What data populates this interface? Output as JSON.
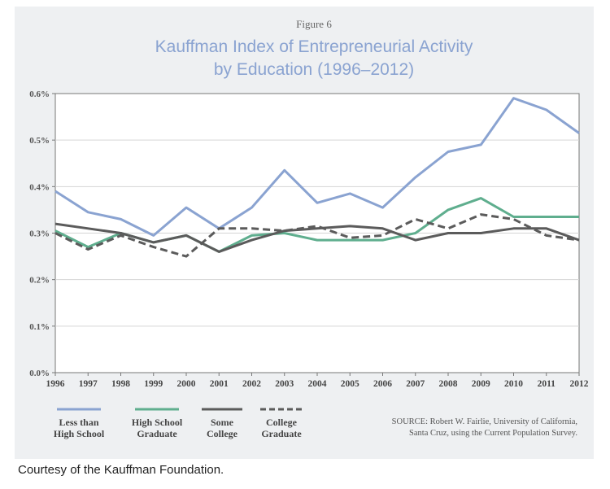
{
  "caption": "Courtesy of the Kauffman Foundation.",
  "chart_data": {
    "type": "line",
    "figure_label": "Figure 6",
    "title_line1": "Kauffman Index of Entrepreneurial Activity",
    "title_line2": "by Education (1996–2012)",
    "x": [
      1996,
      1997,
      1998,
      1999,
      2000,
      2001,
      2002,
      2003,
      2004,
      2005,
      2006,
      2007,
      2008,
      2009,
      2010,
      2011,
      2012
    ],
    "yticks": [
      0.0,
      0.1,
      0.2,
      0.3,
      0.4,
      0.5,
      0.6
    ],
    "ytick_labels": [
      "0.0%",
      "0.1%",
      "0.2%",
      "0.3%",
      "0.4%",
      "0.5%",
      "0.6%"
    ],
    "ylim": [
      0,
      0.6
    ],
    "series": [
      {
        "name_line1": "Less than",
        "name_line2": "High School",
        "color": "#8aa3d1",
        "dash": "solid",
        "values": [
          0.39,
          0.345,
          0.33,
          0.295,
          0.355,
          0.31,
          0.355,
          0.435,
          0.365,
          0.385,
          0.355,
          0.42,
          0.475,
          0.49,
          0.59,
          0.565,
          0.515
        ]
      },
      {
        "name_line1": "High School",
        "name_line2": "Graduate",
        "color": "#5fae8e",
        "dash": "solid",
        "values": [
          0.305,
          0.27,
          0.3,
          0.28,
          0.295,
          0.26,
          0.295,
          0.3,
          0.285,
          0.285,
          0.285,
          0.3,
          0.35,
          0.375,
          0.335,
          0.335,
          0.335
        ]
      },
      {
        "name_line1": "Some",
        "name_line2": "College",
        "color": "#5b5b5b",
        "dash": "solid",
        "values": [
          0.32,
          0.31,
          0.3,
          0.28,
          0.295,
          0.26,
          0.285,
          0.305,
          0.31,
          0.315,
          0.31,
          0.285,
          0.3,
          0.3,
          0.31,
          0.31,
          0.285
        ]
      },
      {
        "name_line1": "College",
        "name_line2": "Graduate",
        "color": "#5b5b5b",
        "dash": "dashed",
        "values": [
          0.3,
          0.265,
          0.295,
          0.27,
          0.25,
          0.31,
          0.31,
          0.305,
          0.315,
          0.29,
          0.295,
          0.33,
          0.31,
          0.34,
          0.33,
          0.295,
          0.285
        ]
      }
    ],
    "source_line1": "SOURCE: Robert W. Fairlie, University of California,",
    "source_line2": "Santa Cruz, using the Current Population Survey."
  }
}
